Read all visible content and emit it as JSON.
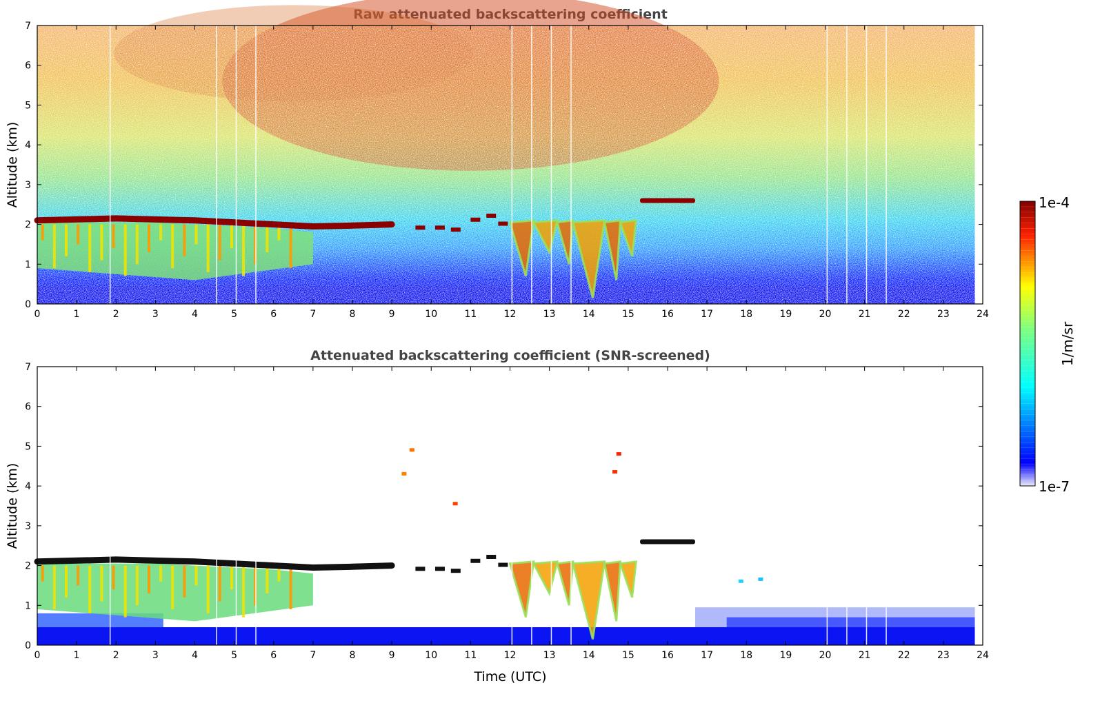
{
  "chart_data": [
    {
      "type": "heatmap",
      "title": "Raw attenuated backscattering coefficient",
      "xlabel": "",
      "ylabel": "Altitude (km)",
      "xlim": [
        0,
        24
      ],
      "ylim": [
        0,
        7
      ],
      "x_ticks": [
        "0",
        "1",
        "2",
        "3",
        "4",
        "5",
        "6",
        "7",
        "8",
        "9",
        "10",
        "11",
        "12",
        "13",
        "14",
        "15",
        "16",
        "17",
        "18",
        "19",
        "20",
        "21",
        "22",
        "23",
        "24"
      ],
      "y_ticks": [
        "0",
        "1",
        "2",
        "3",
        "4",
        "5",
        "6",
        "7"
      ],
      "data_end_x": 23.8,
      "data_gaps_x": [
        1.85,
        4.55,
        5.05,
        5.55,
        12.05,
        12.55,
        13.05,
        13.55,
        20.05,
        20.55,
        21.05,
        21.55
      ],
      "features": [
        {
          "kind": "cloud_top_layer",
          "x": [
            0,
            2,
            4,
            6,
            7,
            8,
            9
          ],
          "y": [
            2.1,
            2.15,
            2.1,
            2.0,
            1.95,
            1.97,
            2.0
          ],
          "level": "high"
        },
        {
          "kind": "elevated_layer",
          "x": [
            15.3,
            16.7
          ],
          "y": [
            2.55,
            2.6
          ],
          "level": "high"
        },
        {
          "kind": "convective_plume",
          "x_range": [
            12.0,
            15.1
          ],
          "top_km": 2.0,
          "level": "medium-high"
        },
        {
          "kind": "aerosol_boundary_layer",
          "x_range": [
            0,
            7
          ],
          "top_km": 1.8,
          "level": "medium"
        },
        {
          "kind": "noise_background",
          "description_level": "increases with altitude"
        }
      ]
    },
    {
      "type": "heatmap",
      "title": "Attenuated backscattering coefficient (SNR-screened)",
      "xlabel": "Time (UTC)",
      "ylabel": "Altitude (km)",
      "xlim": [
        0,
        24
      ],
      "ylim": [
        0,
        7
      ],
      "x_ticks": [
        "0",
        "1",
        "2",
        "3",
        "4",
        "5",
        "6",
        "7",
        "8",
        "9",
        "10",
        "11",
        "12",
        "13",
        "14",
        "15",
        "16",
        "17",
        "18",
        "19",
        "20",
        "21",
        "22",
        "23",
        "24"
      ],
      "y_ticks": [
        "0",
        "1",
        "2",
        "3",
        "4",
        "5",
        "6",
        "7"
      ],
      "data_end_x": 23.8,
      "screened": true
    }
  ],
  "colorbar": {
    "label": "1/m/sr",
    "max_label": "1e-4",
    "min_label": "1e-7",
    "scale": "log",
    "range": [
      1e-07,
      0.0001
    ],
    "colors": [
      "#ececfa",
      "#0000ff",
      "#00ffff",
      "#ffff00",
      "#ff0000",
      "#800000"
    ]
  }
}
